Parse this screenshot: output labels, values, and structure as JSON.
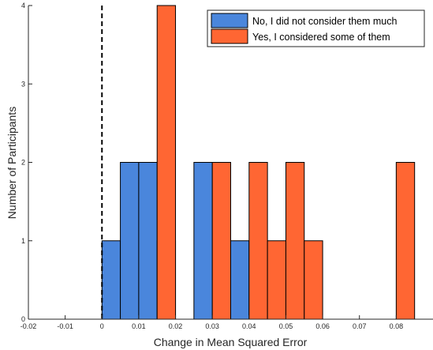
{
  "chart_data": {
    "type": "bar",
    "xlabel": "Change in Mean Squared Error",
    "ylabel": "Number of Participants",
    "xlim": [
      -0.02,
      0.09
    ],
    "ylim": [
      0,
      4
    ],
    "x_ticks": [
      -0.02,
      -0.01,
      0,
      0.01,
      0.02,
      0.03,
      0.04,
      0.05,
      0.06,
      0.07,
      0.08
    ],
    "x_tick_labels": [
      "-0.02",
      "-0.01",
      "0",
      "0.01",
      "0.02",
      "0.03",
      "0.04",
      "0.05",
      "0.06",
      "0.07",
      "0.08"
    ],
    "y_ticks": [
      0,
      1,
      2,
      3,
      4
    ],
    "y_tick_labels": [
      "0",
      "1",
      "2",
      "3",
      "4"
    ],
    "bin_width": 0.005,
    "reference_line_x": 0,
    "legend_position": "top-right",
    "series": [
      {
        "name": "No, I did not consider them much",
        "color": "#4a86dc",
        "bins": [
          {
            "x0": 0.0,
            "x1": 0.005,
            "value": 1
          },
          {
            "x0": 0.005,
            "x1": 0.01,
            "value": 2
          },
          {
            "x0": 0.01,
            "x1": 0.015,
            "value": 2
          },
          {
            "x0": 0.015,
            "x1": 0.02,
            "value": 1
          },
          {
            "x0": 0.025,
            "x1": 0.03,
            "value": 2
          },
          {
            "x0": 0.035,
            "x1": 0.04,
            "value": 1
          },
          {
            "x0": 0.04,
            "x1": 0.045,
            "value": 1
          }
        ]
      },
      {
        "name": "Yes, I considered some of them",
        "color": "#ff6633",
        "bins": [
          {
            "x0": 0.015,
            "x1": 0.02,
            "value": 4
          },
          {
            "x0": 0.03,
            "x1": 0.035,
            "value": 2
          },
          {
            "x0": 0.04,
            "x1": 0.045,
            "value": 2
          },
          {
            "x0": 0.045,
            "x1": 0.05,
            "value": 1
          },
          {
            "x0": 0.05,
            "x1": 0.055,
            "value": 2
          },
          {
            "x0": 0.055,
            "x1": 0.06,
            "value": 1
          },
          {
            "x0": 0.08,
            "x1": 0.085,
            "value": 2
          }
        ]
      }
    ]
  }
}
